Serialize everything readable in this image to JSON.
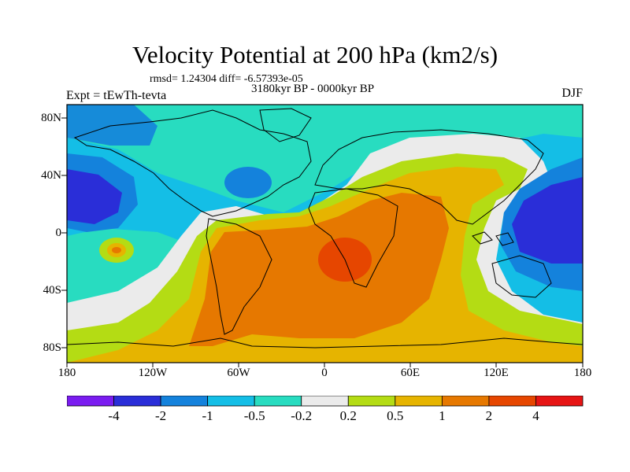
{
  "title": "Velocity Potential at 200 hPa (km2/s)",
  "stats": "rmsd= 1.24304 diff= -6.57393e-05",
  "period": "3180kyr BP - 0000kyr BP",
  "experiment": "Expt = tEwTh-tevta",
  "season": "DJF",
  "lat_ticks": [
    "80N",
    "40N",
    "0",
    "40S",
    "80S"
  ],
  "lon_ticks": [
    "180",
    "120W",
    "60W",
    "0",
    "60E",
    "120E",
    "180"
  ],
  "colorbar": {
    "labels": [
      "-4",
      "-2",
      "-1",
      "-0.5",
      "-0.2",
      "0.2",
      "0.5",
      "1",
      "2",
      "4"
    ],
    "colors": [
      "#7a1cf0",
      "#2a2ed8",
      "#1482dc",
      "#14bee6",
      "#28dcc0",
      "#ebebeb",
      "#b4dc14",
      "#e6b400",
      "#e67800",
      "#e64600",
      "#e61414"
    ]
  }
}
